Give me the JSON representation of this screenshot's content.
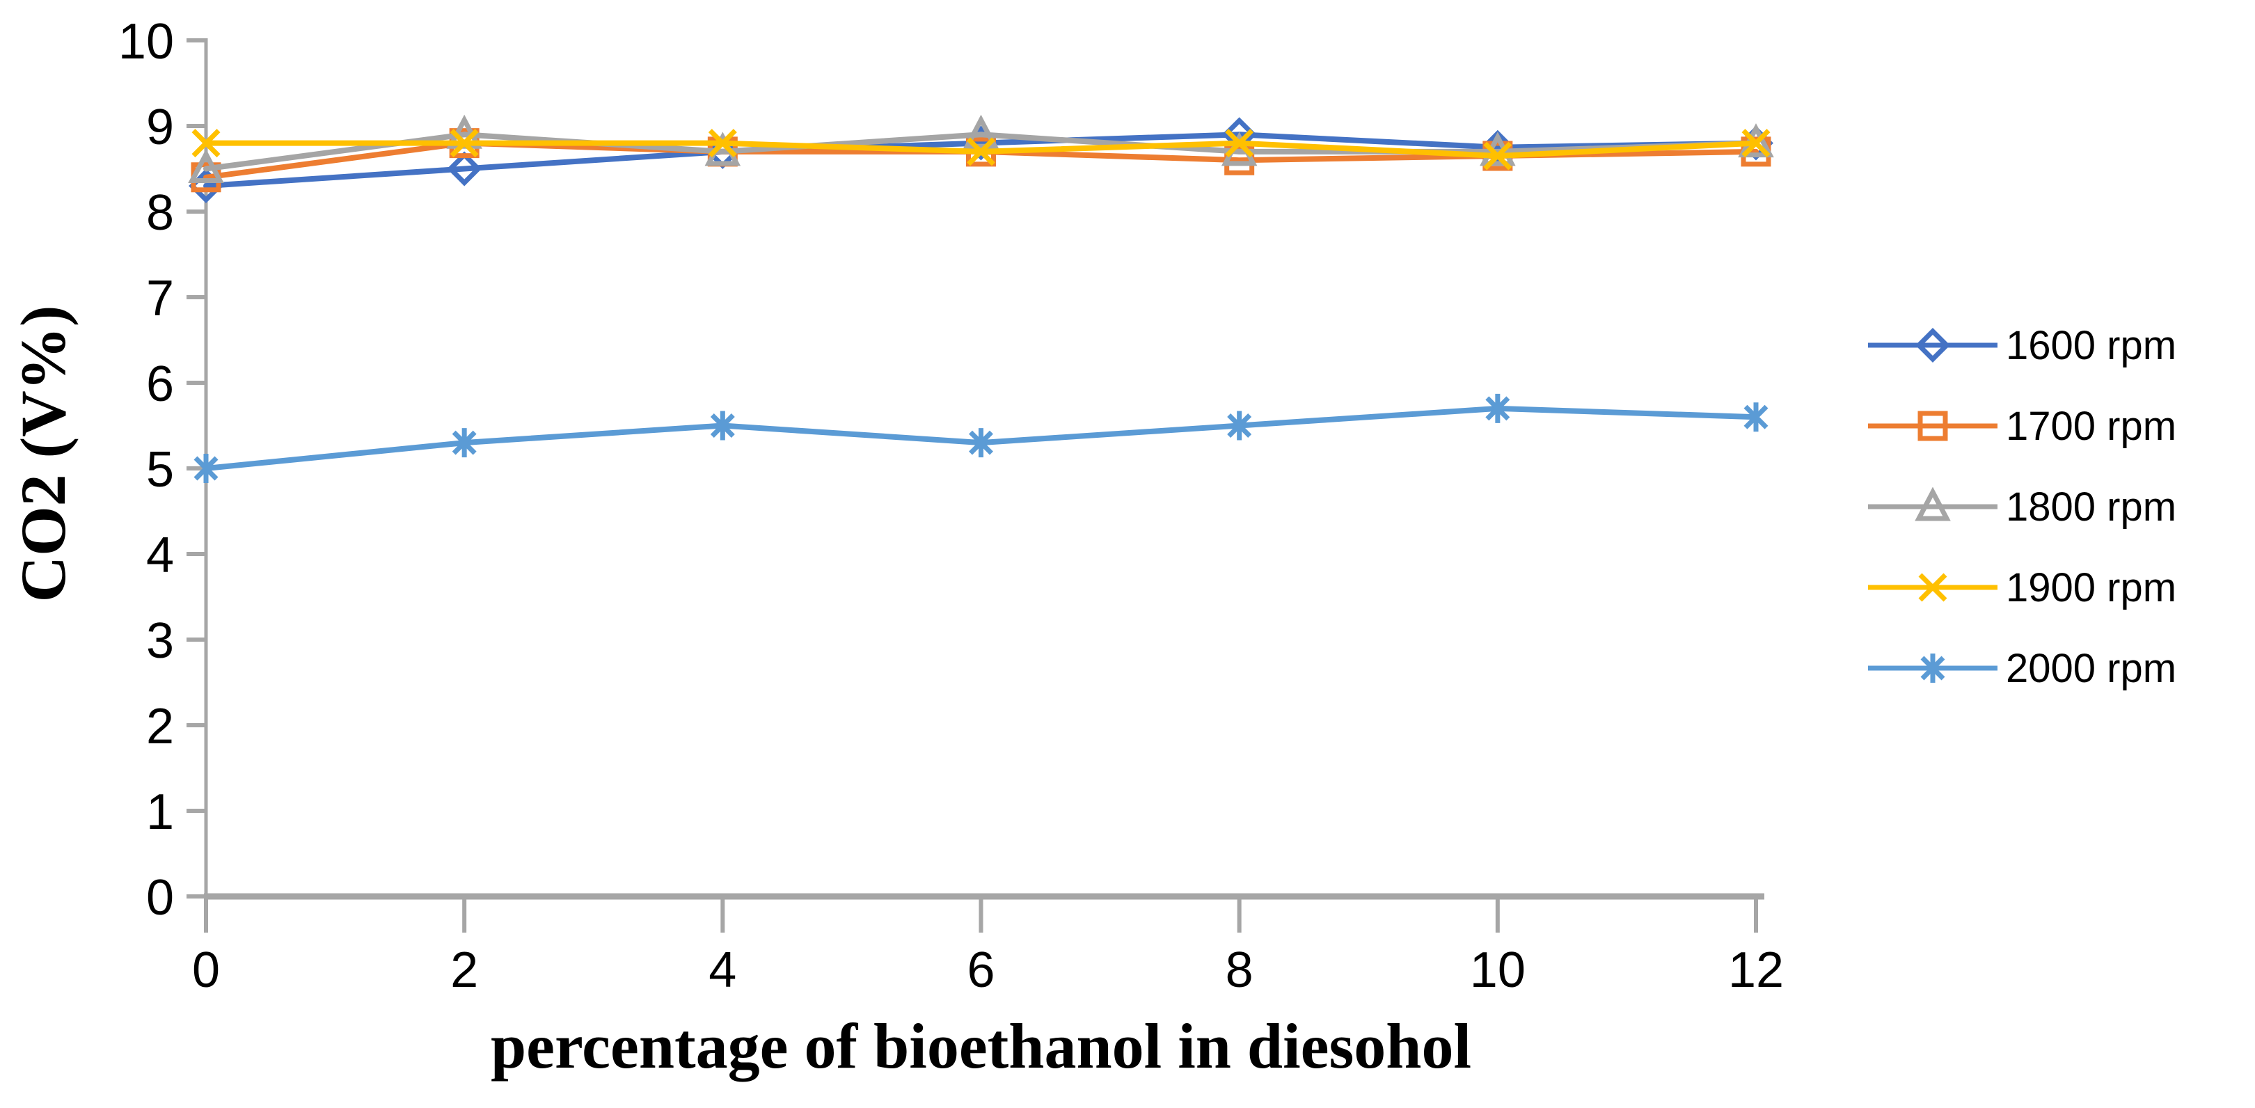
{
  "chart_data": {
    "type": "line",
    "title": "",
    "xlabel": "percentage of bioethanol in diesohol",
    "ylabel": "CO2 (V%)",
    "categories": [
      0,
      2,
      4,
      6,
      8,
      10,
      12
    ],
    "x_tick_labels": [
      "0",
      "2",
      "4",
      "6",
      "8",
      "10",
      "12"
    ],
    "y_ticks": [
      0,
      1,
      2,
      3,
      4,
      5,
      6,
      7,
      8,
      9,
      10
    ],
    "y_tick_labels": [
      "0",
      "1",
      "2",
      "3",
      "4",
      "5",
      "6",
      "7",
      "8",
      "9",
      "10"
    ],
    "xlim": [
      0,
      12
    ],
    "ylim": [
      0,
      10
    ],
    "grid": false,
    "legend_position": "right",
    "axis_color": "#A6A6A6",
    "text_color": "#000000",
    "series": [
      {
        "name": "1600 rpm",
        "color": "#4472C4",
        "marker": "diamond",
        "values": [
          8.3,
          8.5,
          8.7,
          8.8,
          8.9,
          8.75,
          8.8
        ]
      },
      {
        "name": "1700 rpm",
        "color": "#ED7D31",
        "marker": "square",
        "values": [
          8.4,
          8.8,
          8.7,
          8.7,
          8.6,
          8.65,
          8.7
        ]
      },
      {
        "name": "1800 rpm",
        "color": "#A5A5A5",
        "marker": "triangle",
        "values": [
          8.5,
          8.9,
          8.7,
          8.9,
          8.7,
          8.7,
          8.8
        ]
      },
      {
        "name": "1900 rpm",
        "color": "#FFC000",
        "marker": "x",
        "values": [
          8.8,
          8.8,
          8.8,
          8.7,
          8.8,
          8.65,
          8.8
        ]
      },
      {
        "name": "2000 rpm",
        "color": "#5B9BD5",
        "marker": "asterisk",
        "values": [
          5.0,
          5.3,
          5.5,
          5.3,
          5.5,
          5.7,
          5.6
        ]
      }
    ]
  }
}
